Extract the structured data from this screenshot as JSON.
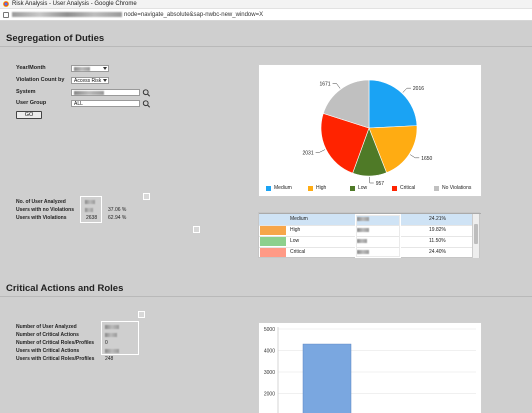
{
  "window": {
    "title": "Risk Analysis - User Analysis - Google Chrome",
    "url_visible": "node=navigate_absolute&sap-nwbc-new_window=X"
  },
  "sod": {
    "heading": "Segregation of Duties",
    "filters": {
      "year_month_label": "Year/Month",
      "violation_count_label": "Violation Count by",
      "violation_count_value": "Access Risk",
      "system_label": "System",
      "user_group_label": "User Group",
      "user_group_value": "ALL",
      "go_label": "GO"
    },
    "stats": {
      "users_analyzed_label": "No. of User Analyzed",
      "no_violations_label": "Users with no Violations",
      "no_violations_pct": "37.06 %",
      "with_violations_label": "Users with Violations",
      "with_violations_count": "2638",
      "with_violations_pct": "62.94 %"
    },
    "pie": {
      "slice_labels": {
        "medium": "2016",
        "high": "1650",
        "low": "957",
        "critical": "2031",
        "none": "1671"
      },
      "legend": [
        "Medium",
        "High",
        "Low",
        "Critical",
        "No Violations"
      ],
      "colors": {
        "medium": "#1aa3f4",
        "high": "#ffac12",
        "low": "#4f7a27",
        "critical": "#ff2300",
        "none": "#c0c0c0"
      }
    },
    "table": {
      "rows": [
        {
          "label": "Medium",
          "pct": "24.21%",
          "color": "#cfe3f5"
        },
        {
          "label": "High",
          "pct": "19.82%",
          "color": "#f7a64a"
        },
        {
          "label": "Low",
          "pct": "11.50%",
          "color": "#8dd08d"
        },
        {
          "label": "Critical",
          "pct": "24.40%",
          "color": "#ff9a86"
        }
      ]
    }
  },
  "car": {
    "heading": "Critical Actions and Roles",
    "stats": {
      "users_analyzed_label": "Number of User Analyzed",
      "critical_actions_label": "Number of Critical Actions",
      "critical_roles_label": "Number of Critical Roles/Profiles",
      "critical_roles_value": "0",
      "users_critical_actions_label": "Users with Critical Actions",
      "users_critical_roles_label": "Users with Critical Roles/Profiles",
      "users_critical_roles_value": "248"
    },
    "chart_data": {
      "type": "bar",
      "categories": [
        ""
      ],
      "values": [
        4300
      ],
      "ylim": [
        0,
        5000
      ],
      "yticks": [
        "5000",
        "4000",
        "3000",
        "2000"
      ],
      "bar_color": "#7aa7e0"
    }
  }
}
